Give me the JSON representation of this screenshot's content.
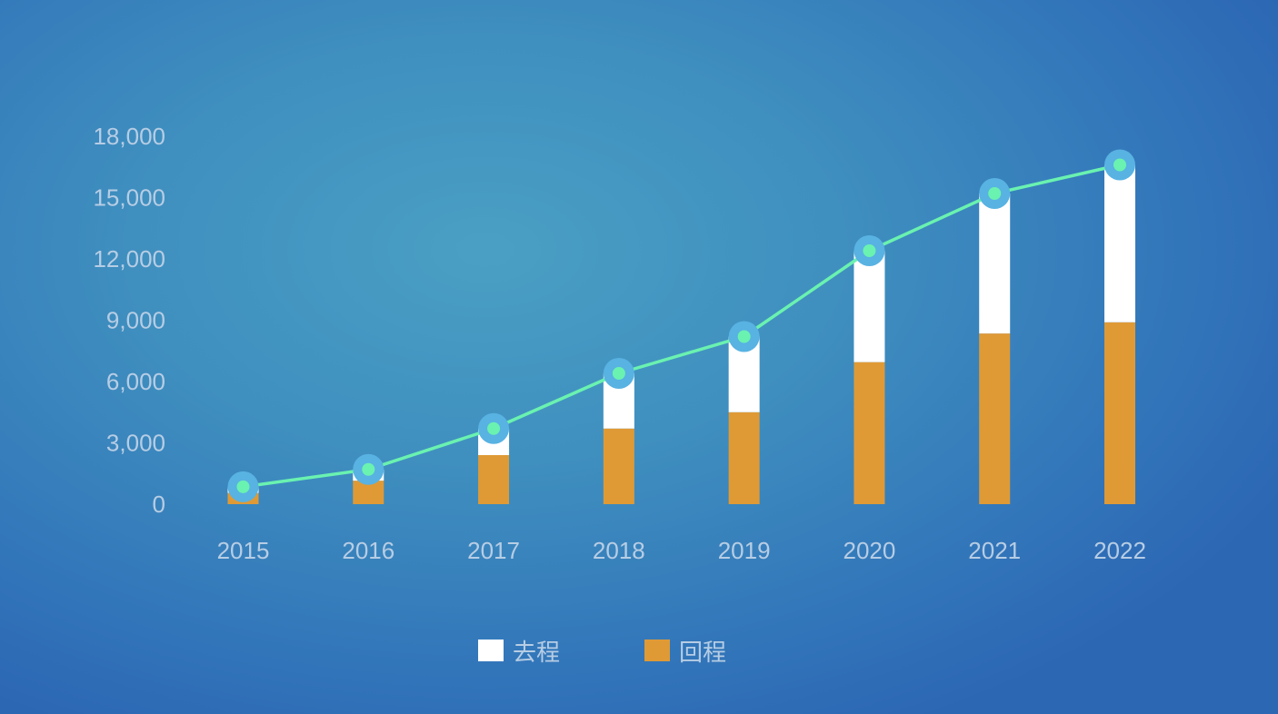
{
  "chart_data": {
    "type": "bar",
    "stacked": true,
    "categories": [
      "2015",
      "2016",
      "2017",
      "2018",
      "2019",
      "2020",
      "2021",
      "2022"
    ],
    "series": [
      {
        "name": "回程",
        "type": "bar",
        "color": "#df9a36",
        "values": [
          550,
          1150,
          2400,
          3700,
          4500,
          6950,
          8350,
          8900
        ]
      },
      {
        "name": "去程",
        "type": "bar",
        "color": "#ffffff",
        "values": [
          300,
          550,
          1300,
          2700,
          3700,
          5450,
          6850,
          7700
        ]
      },
      {
        "type": "line",
        "color": "#6af2b0",
        "values": [
          850,
          1700,
          3700,
          6400,
          8200,
          12400,
          15200,
          16600
        ]
      }
    ],
    "yticks": [
      "0",
      "3,000",
      "6,000",
      "9,000",
      "12,000",
      "15,000",
      "18,000"
    ],
    "ylim": [
      0,
      18000
    ],
    "grid": false,
    "legend_position": "bottom-center"
  },
  "legend": {
    "items": [
      {
        "label": "去程",
        "color": "#ffffff"
      },
      {
        "label": "回程",
        "color": "#df9a36"
      }
    ]
  }
}
